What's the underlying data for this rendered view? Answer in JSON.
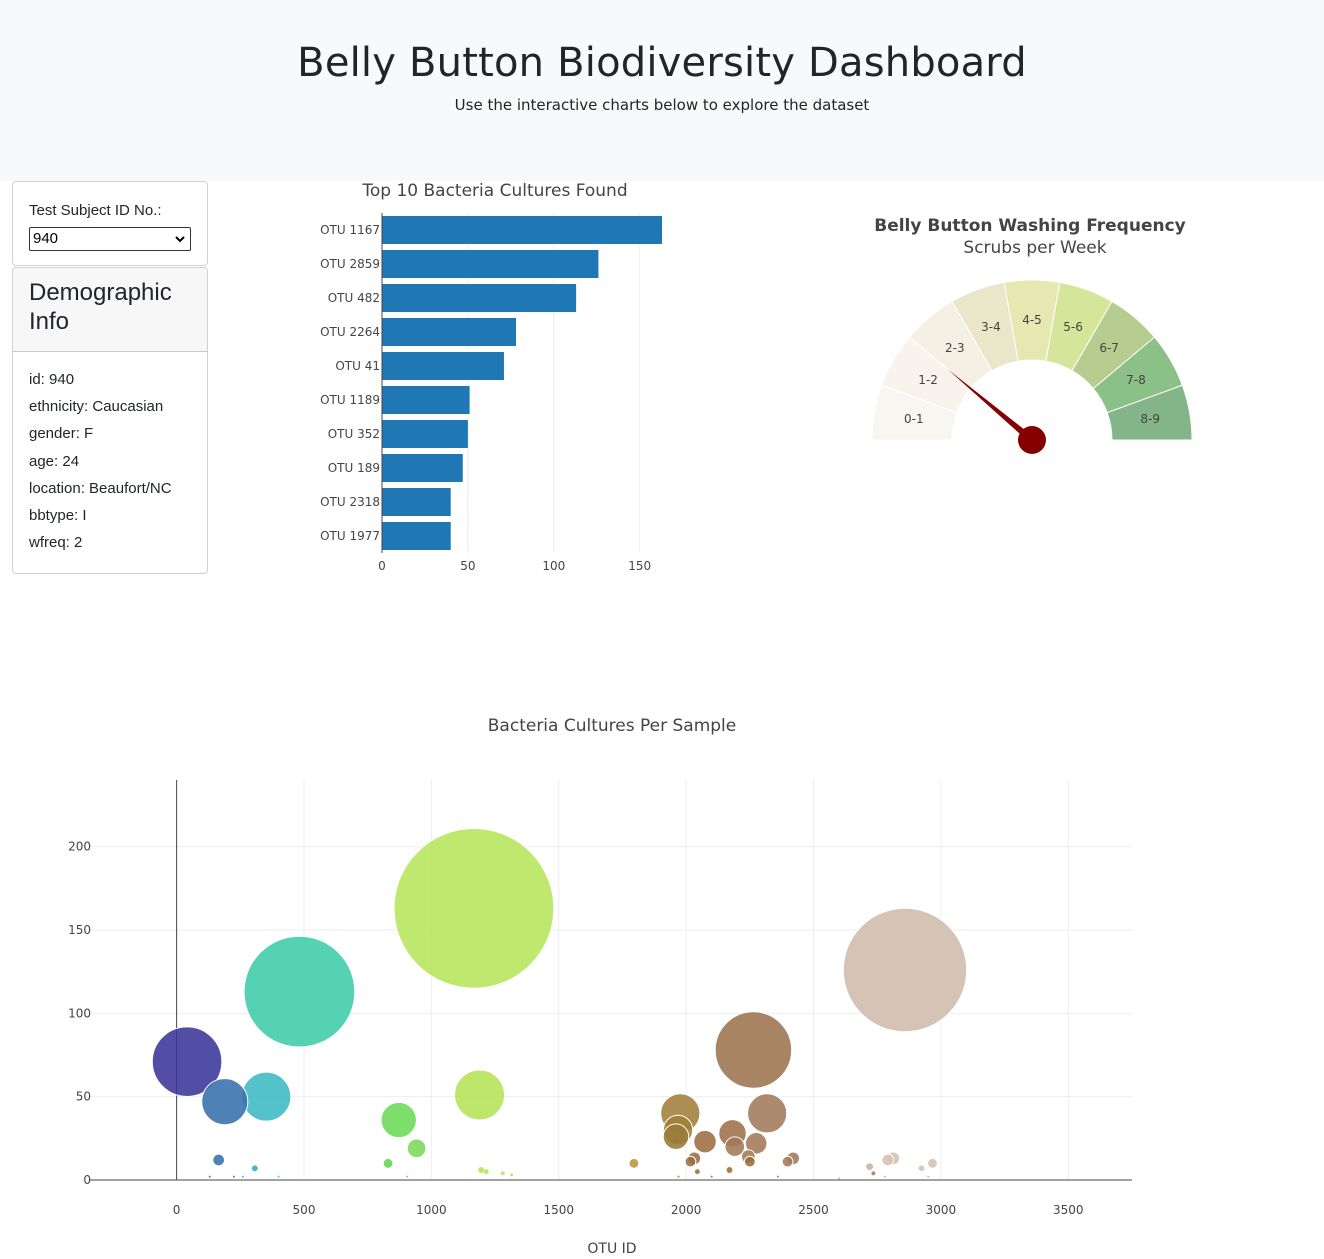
{
  "header": {
    "title": "Belly Button Biodiversity Dashboard",
    "subtitle": "Use the interactive charts below to explore the dataset"
  },
  "selector": {
    "label": "Test Subject ID No.:",
    "selected": "940",
    "chevron_icon": "chevron-down-icon"
  },
  "demographic": {
    "title": "Demographic Info",
    "items": [
      "id: 940",
      "ethnicity: Caucasian",
      "gender: F",
      "age: 24",
      "location: Beaufort/NC",
      "bbtype: I",
      "wfreq: 2"
    ]
  },
  "colors": {
    "bar": "#1f77b4",
    "needle": "#850000",
    "gauge_bands": [
      "#f8f3ec",
      "#f4f1e4",
      "#e9e6c9",
      "#e5e8b0",
      "#d5e599",
      "#b7cd8f",
      "#8bc086",
      "#84b589"
    ]
  },
  "chart_data": [
    {
      "type": "bar",
      "orientation": "horizontal",
      "title": "Top 10 Bacteria Cultures Found",
      "categories": [
        "OTU 1167",
        "OTU 2859",
        "OTU 482",
        "OTU 2264",
        "OTU 41",
        "OTU 1189",
        "OTU 352",
        "OTU 189",
        "OTU 2318",
        "OTU 1977"
      ],
      "values": [
        163,
        126,
        113,
        78,
        71,
        51,
        50,
        47,
        40,
        40
      ],
      "xlim": [
        0,
        163
      ],
      "xticks": [
        0,
        50,
        100,
        150
      ],
      "grid": true
    },
    {
      "type": "gauge",
      "title": "Belly Button Washing Frequency",
      "subtitle": "Scrubs per Week",
      "bands": [
        "0-1",
        "1-2",
        "2-3",
        "3-4",
        "4-5",
        "5-6",
        "6-7",
        "7-8",
        "8-9"
      ],
      "range": [
        0,
        9
      ],
      "value": 2
    },
    {
      "type": "scatter",
      "style": "bubble",
      "title": "Bacteria Cultures Per Sample",
      "xlabel": "OTU ID",
      "ylabel": "",
      "xlim": [
        -340,
        3750
      ],
      "ylim": [
        0,
        240
      ],
      "xticks": [
        0,
        500,
        1000,
        1500,
        2000,
        2500,
        3000,
        3500
      ],
      "yticks": [
        0,
        50,
        100,
        150,
        200
      ],
      "grid": true,
      "points": [
        {
          "x": 41,
          "y": 71,
          "color": "#3b3599"
        },
        {
          "x": 189,
          "y": 47,
          "color": "#3870ac"
        },
        {
          "x": 352,
          "y": 50,
          "color": "#3bbac4"
        },
        {
          "x": 482,
          "y": 113,
          "color": "#3ecca8"
        },
        {
          "x": 1167,
          "y": 163,
          "color": "#b6e55b"
        },
        {
          "x": 1189,
          "y": 51,
          "color": "#b5e356"
        },
        {
          "x": 872,
          "y": 36,
          "color": "#6ad957"
        },
        {
          "x": 942,
          "y": 19,
          "color": "#7ad957"
        },
        {
          "x": 2859,
          "y": 126,
          "color": "#cfbcab"
        },
        {
          "x": 2264,
          "y": 78,
          "color": "#9c7350"
        },
        {
          "x": 2318,
          "y": 40,
          "color": "#a07a5a"
        },
        {
          "x": 1977,
          "y": 40,
          "color": "#a17d3a"
        },
        {
          "x": 1968,
          "y": 30,
          "color": "#a0803a"
        },
        {
          "x": 1960,
          "y": 26,
          "color": "#9a7a36"
        },
        {
          "x": 2182,
          "y": 28,
          "color": "#9d7048"
        },
        {
          "x": 2074,
          "y": 23,
          "color": "#9b6e40"
        },
        {
          "x": 2191,
          "y": 20,
          "color": "#a27a58"
        },
        {
          "x": 2275,
          "y": 22,
          "color": "#a27a58"
        },
        {
          "x": 2244,
          "y": 14,
          "color": "#a27a58"
        },
        {
          "x": 2420,
          "y": 13,
          "color": "#a27a58"
        },
        {
          "x": 2398,
          "y": 11,
          "color": "#a27a58"
        },
        {
          "x": 2032,
          "y": 13,
          "color": "#9b6e40"
        },
        {
          "x": 2017,
          "y": 11,
          "color": "#9b6e40"
        },
        {
          "x": 2250,
          "y": 11,
          "color": "#9b6e40"
        },
        {
          "x": 1795,
          "y": 10,
          "color": "#b8963c"
        },
        {
          "x": 2813,
          "y": 13,
          "color": "#d5c2b2"
        },
        {
          "x": 2791,
          "y": 12,
          "color": "#d5c2b2"
        },
        {
          "x": 2967,
          "y": 10,
          "color": "#d5c2b2"
        },
        {
          "x": 2924,
          "y": 7,
          "color": "#d5c2b2"
        },
        {
          "x": 2720,
          "y": 8,
          "color": "#c9b09d"
        },
        {
          "x": 165,
          "y": 12,
          "color": "#3870ac"
        },
        {
          "x": 307,
          "y": 7,
          "color": "#2da8c8"
        },
        {
          "x": 830,
          "y": 10,
          "color": "#62d64c"
        },
        {
          "x": 1195,
          "y": 6,
          "color": "#b5e356"
        },
        {
          "x": 1215,
          "y": 5,
          "color": "#b5e356"
        },
        {
          "x": 2044,
          "y": 5,
          "color": "#9b6e40"
        },
        {
          "x": 2170,
          "y": 6,
          "color": "#9b6e40"
        },
        {
          "x": 2735,
          "y": 4,
          "color": "#a07a60"
        },
        {
          "x": 1280,
          "y": 4,
          "color": "#b5e356"
        },
        {
          "x": 1315,
          "y": 3,
          "color": "#b5e356"
        },
        {
          "x": 130,
          "y": 2,
          "color": "#3870ac"
        },
        {
          "x": 225,
          "y": 2,
          "color": "#3870ac"
        },
        {
          "x": 260,
          "y": 2,
          "color": "#3bbac4"
        },
        {
          "x": 400,
          "y": 2,
          "color": "#3ecca8"
        },
        {
          "x": 905,
          "y": 2,
          "color": "#62d64c"
        },
        {
          "x": 2100,
          "y": 2,
          "color": "#9b6e40"
        },
        {
          "x": 2360,
          "y": 2,
          "color": "#9b6e40"
        },
        {
          "x": 2600,
          "y": 1,
          "color": "#c9b09d"
        },
        {
          "x": 2780,
          "y": 2,
          "color": "#c9b09d"
        },
        {
          "x": 2950,
          "y": 2,
          "color": "#c9b09d"
        },
        {
          "x": 1970,
          "y": 2,
          "color": "#a0803a"
        }
      ]
    }
  ]
}
